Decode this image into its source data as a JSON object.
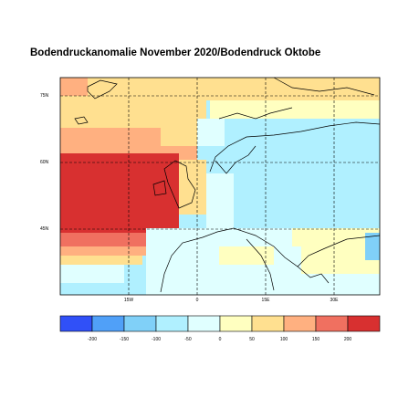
{
  "title": "Bodendruckanomalie November 2020/Bodendruck Oktobe",
  "lat_ticks": [
    "75N",
    "60N",
    "45N"
  ],
  "lon_ticks": [
    "15W",
    "0",
    "15E",
    "30E"
  ],
  "colorbar": {
    "labels": [
      "-200",
      "-150",
      "-100",
      "-50",
      "0",
      "50",
      "100",
      "150",
      "200"
    ],
    "colors": [
      "#3050f8",
      "#50a0f8",
      "#80d0f8",
      "#b0f0ff",
      "#e0ffff",
      "#ffffc0",
      "#ffe090",
      "#ffb080",
      "#f07060",
      "#d83030"
    ]
  },
  "colors": {
    "water_bg": "#b0f0ff",
    "frame": "#000000"
  }
}
